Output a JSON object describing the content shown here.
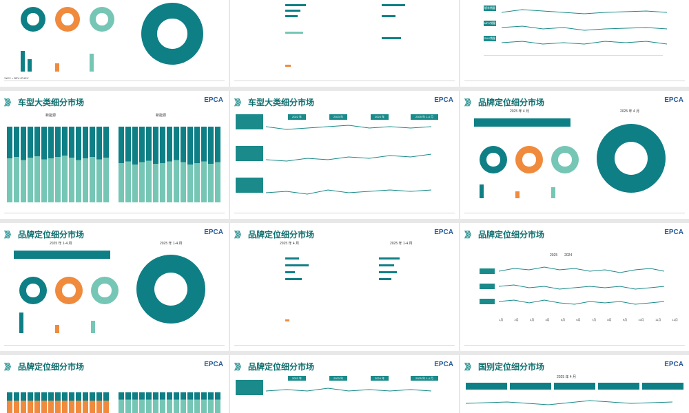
{
  "slides": {
    "row1_1": {
      "footnote": "*NEV = BEV+PHEV"
    },
    "row1_2": {},
    "row1_3": {
      "labels": [
        "轿车销量",
        "MPV销量",
        "SUV销量"
      ]
    },
    "row2_1": {
      "title": "车型大类细分市场",
      "logo": "EPCA",
      "left_chart_title": "新能源",
      "right_chart_title": "新能源"
    },
    "row2_2": {
      "title": "车型大类细分市场",
      "logo": "EPCA",
      "years": [
        "2022 年",
        "2023 年",
        "2024 年",
        "2025 年 1-4 月"
      ]
    },
    "row2_3": {
      "title": "品牌定位细分市场",
      "logo": "EPCA",
      "subtitle_left": "2025 年 4 月",
      "subtitle_right": "2025 年 4 月"
    },
    "row3_1": {
      "title": "品牌定位细分市场",
      "logo": "EPCA",
      "subtitle_left": "2025 年 1-4 月",
      "subtitle_right": "2025 年 1-4 月"
    },
    "row3_2": {
      "title": "品牌定位细分市场",
      "logo": "EPCA",
      "subtitle_left": "2025 年 4 月",
      "subtitle_right": "2025 年 1-4 月"
    },
    "row3_3": {
      "title": "品牌定位细分市场",
      "logo": "EPCA",
      "legend": [
        "2025",
        "2024"
      ],
      "months": [
        "1月",
        "2月",
        "3月",
        "4月",
        "5月",
        "6月",
        "7月",
        "8月",
        "9月",
        "10月",
        "11月",
        "12月"
      ]
    },
    "row4_1": {
      "title": "品牌定位细分市场",
      "logo": "EPCA"
    },
    "row4_2": {
      "title": "品牌定位细分市场",
      "logo": "EPCA",
      "years": [
        "2022 年",
        "2023 年",
        "2024 年",
        "2025 年 1-4 月"
      ]
    },
    "row4_3": {
      "title": "国别定位细分市场",
      "logo": "EPCA",
      "subtitle": "2025 年 4 月"
    }
  }
}
